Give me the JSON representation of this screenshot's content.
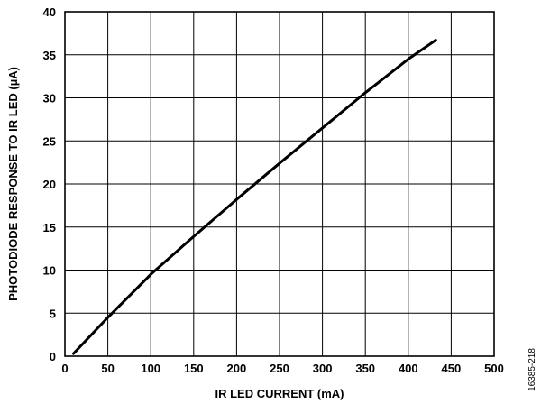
{
  "figure_id": "16385-218",
  "chart_data": {
    "type": "line",
    "xlabel": "IR LED CURRENT (mA)",
    "ylabel": "PHOTODIODE RESPONSE TO IR LED  (µA)",
    "xlim": [
      0,
      500
    ],
    "ylim": [
      0,
      40
    ],
    "x_ticks": [
      0,
      50,
      100,
      150,
      200,
      250,
      300,
      350,
      400,
      450,
      500
    ],
    "y_ticks": [
      0,
      5,
      10,
      15,
      20,
      25,
      30,
      35,
      40
    ],
    "grid": true,
    "series": [
      {
        "x": [
          10,
          50,
          100,
          150,
          200,
          250,
          300,
          350,
          400,
          432
        ],
        "y": [
          0.3,
          4.5,
          9.5,
          13.9,
          18.2,
          22.4,
          26.5,
          30.6,
          34.5,
          36.7
        ]
      }
    ]
  }
}
